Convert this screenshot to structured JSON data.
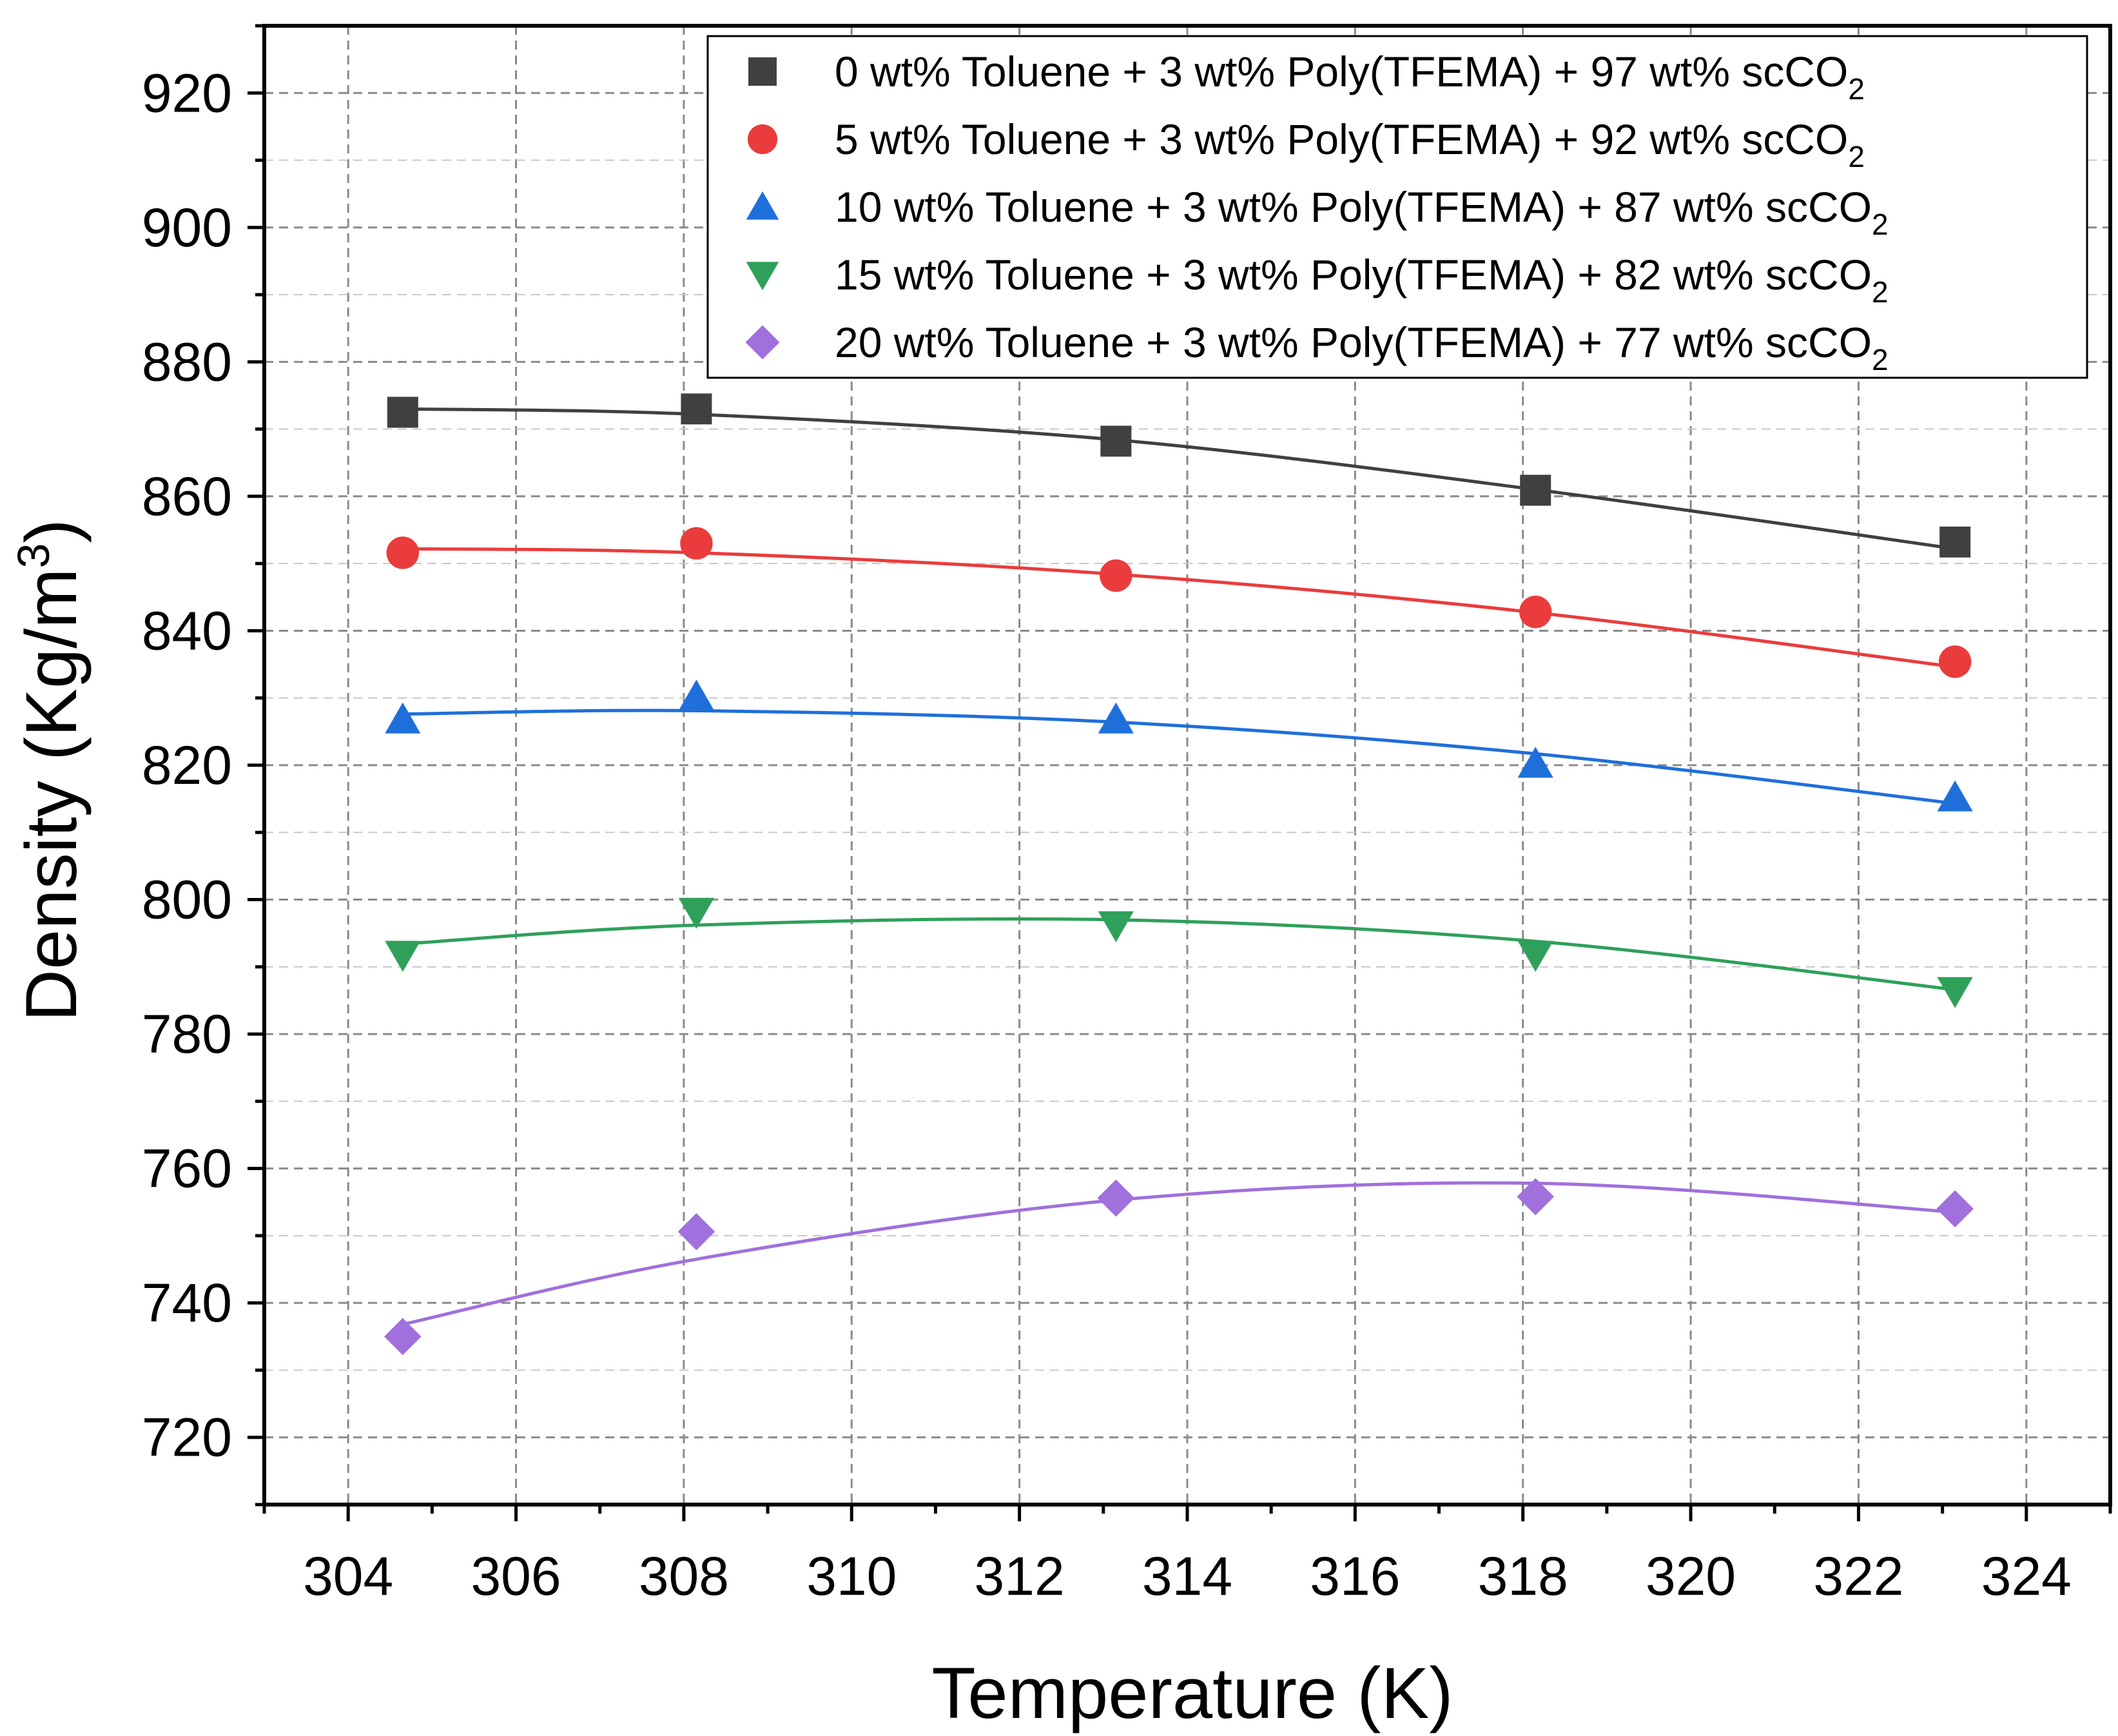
{
  "chart_data": {
    "type": "scatter",
    "title": "",
    "xlabel": "Temperature (K)",
    "ylabel_main": "Density (Kg/m",
    "ylabel_superscript": "3",
    "ylabel_close": ")",
    "xlim": [
      303,
      325
    ],
    "ylim": [
      710,
      930
    ],
    "x_ticks": [
      304,
      306,
      308,
      310,
      312,
      314,
      316,
      318,
      320,
      322,
      324
    ],
    "x_tick_labels": [
      "304",
      "306",
      "308",
      "310",
      "312",
      "314",
      "316",
      "318",
      "320",
      "322",
      "324"
    ],
    "y_ticks": [
      720,
      740,
      760,
      780,
      800,
      820,
      840,
      860,
      880,
      900,
      920
    ],
    "y_tick_labels": [
      "720",
      "740",
      "760",
      "780",
      "800",
      "820",
      "840",
      "860",
      "880",
      "900",
      "920"
    ],
    "grid": true,
    "legend_position": "top-right",
    "series": [
      {
        "name": "0 wt% Toluene + 3 wt% Poly(TFEMA) + 97 wt% scCO",
        "subscript": "2",
        "marker": "square",
        "color": "#404040",
        "x": [
          304.65,
          308.15,
          313.15,
          318.15,
          323.15
        ],
        "y": [
          872.5,
          873.0,
          868.2,
          860.9,
          853.2
        ],
        "fit_x": [
          304.65,
          308.15,
          313.15,
          318.15,
          323.15
        ],
        "fit_y": [
          873.0,
          872.2,
          868.4,
          861.0,
          852.2
        ]
      },
      {
        "name": "5 wt% Toluene + 3 wt% Poly(TFEMA) + 92 wt% scCO",
        "subscript": "2",
        "marker": "circle",
        "color": "#ea3c3c",
        "x": [
          304.65,
          308.15,
          313.15,
          318.15,
          323.15
        ],
        "y": [
          851.6,
          853.0,
          848.2,
          842.8,
          835.4
        ],
        "fit_x": [
          304.65,
          308.15,
          313.15,
          318.15,
          323.15
        ],
        "fit_y": [
          852.2,
          851.6,
          848.4,
          842.7,
          834.6
        ]
      },
      {
        "name": "10 wt% Toluene + 3 wt% Poly(TFEMA) + 87 wt% scCO",
        "subscript": "2",
        "marker": "triangle-up",
        "color": "#1f6fdb",
        "x": [
          304.65,
          308.15,
          313.15,
          318.15,
          323.15
        ],
        "y": [
          826.8,
          830.2,
          826.8,
          820.2,
          815.2
        ],
        "fit_x": [
          304.65,
          308.15,
          313.15,
          318.15,
          323.15
        ],
        "fit_y": [
          827.6,
          828.1,
          826.4,
          821.7,
          814.3
        ]
      },
      {
        "name": "15 wt% Toluene + 3 wt% Poly(TFEMA) + 82 wt% scCO",
        "subscript": "2",
        "marker": "triangle-down",
        "color": "#2fa05a",
        "x": [
          304.65,
          308.15,
          313.15,
          318.15,
          323.15
        ],
        "y": [
          791.8,
          798.2,
          796.2,
          791.8,
          786.4
        ],
        "fit_x": [
          304.65,
          308.15,
          313.15,
          318.15,
          323.15
        ],
        "fit_y": [
          793.4,
          796.2,
          797.0,
          793.8,
          786.6
        ]
      },
      {
        "name": "20 wt% Toluene + 3 wt% Poly(TFEMA) + 77 wt% scCO",
        "subscript": "2",
        "marker": "diamond",
        "color": "#a070dc",
        "x": [
          304.65,
          308.15,
          313.15,
          318.15,
          323.15
        ],
        "y": [
          735.0,
          750.6,
          755.6,
          755.8,
          754.0
        ],
        "fit_x": [
          304.65,
          308.15,
          313.15,
          318.15,
          323.15
        ],
        "fit_y": [
          736.8,
          746.5,
          755.3,
          757.8,
          753.5
        ]
      }
    ]
  }
}
